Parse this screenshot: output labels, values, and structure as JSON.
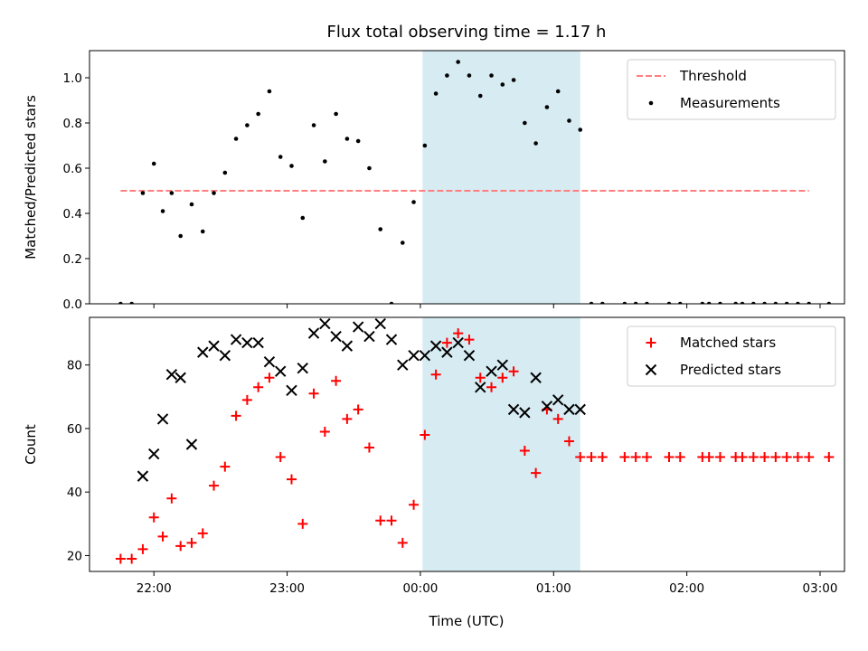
{
  "chart_data": {
    "type": "scatter",
    "title": "Flux total observing time = 1.17 h",
    "xlabel": "Time (UTC)",
    "x_ticks": [
      "22:00",
      "23:00",
      "00:00",
      "01:00",
      "02:00",
      "03:00"
    ],
    "colors": {
      "threshold": "#ff7f7f",
      "measurements": "#000000",
      "matched": "#ff0000",
      "predicted": "#000000",
      "shade": "#add8e6"
    },
    "x_range": [
      "21:31",
      "03:11"
    ],
    "shaded_interval": [
      "00:01",
      "01:12"
    ],
    "panels": [
      {
        "ylabel": "Matched/Predicted stars",
        "ylim": [
          0,
          1.12
        ],
        "y_ticks": [
          "0.0",
          "0.2",
          "0.4",
          "0.6",
          "0.8",
          "1.0"
        ],
        "legend": "top-right",
        "series": [
          {
            "name": "Threshold",
            "kind": "line-dashed",
            "x": [
              "21:45",
              "02:55"
            ],
            "y": [
              0.5,
              0.5
            ]
          },
          {
            "name": "Measurements",
            "kind": "scatter-dot",
            "x": [
              "21:45",
              "21:50",
              "21:55",
              "22:00",
              "22:04",
              "22:08",
              "22:12",
              "22:17",
              "22:22",
              "22:27",
              "22:32",
              "22:37",
              "22:42",
              "22:47",
              "22:52",
              "22:57",
              "23:02",
              "23:07",
              "23:12",
              "23:17",
              "23:22",
              "23:27",
              "23:32",
              "23:37",
              "23:42",
              "23:47",
              "23:52",
              "23:57",
              "00:02",
              "00:07",
              "00:12",
              "00:17",
              "00:22",
              "00:27",
              "00:32",
              "00:37",
              "00:42",
              "00:47",
              "00:52",
              "00:57",
              "01:02",
              "01:07",
              "01:12",
              "01:17",
              "01:22",
              "01:32",
              "01:37",
              "01:42",
              "01:52",
              "01:57",
              "02:07",
              "02:10",
              "02:15",
              "02:22",
              "02:25",
              "02:30",
              "02:35",
              "02:40",
              "02:45",
              "02:50",
              "02:55",
              "03:04"
            ],
            "y": [
              0.0,
              0.0,
              0.49,
              0.62,
              0.41,
              0.49,
              0.3,
              0.44,
              0.32,
              0.49,
              0.58,
              0.73,
              0.79,
              0.84,
              0.94,
              0.65,
              0.61,
              0.38,
              0.79,
              0.63,
              0.84,
              0.73,
              0.72,
              0.6,
              0.33,
              0.0,
              0.27,
              0.45,
              0.7,
              0.93,
              1.01,
              1.07,
              1.01,
              0.92,
              1.01,
              0.97,
              0.99,
              0.8,
              0.71,
              0.87,
              0.94,
              0.81,
              0.77,
              0.0,
              0.0,
              0.0,
              0.0,
              0.0,
              0.0,
              0.0,
              0.0,
              0.0,
              0.0,
              0.0,
              0.0,
              0.0,
              0.0,
              0.0,
              0.0,
              0.0,
              0.0,
              0.0
            ]
          }
        ]
      },
      {
        "ylabel": "Count",
        "ylim": [
          15,
          95
        ],
        "y_ticks": [
          "20",
          "40",
          "60",
          "80"
        ],
        "legend": "top-right",
        "series": [
          {
            "name": "Matched stars",
            "kind": "scatter-plus",
            "x": [
              "21:45",
              "21:50",
              "21:55",
              "22:00",
              "22:04",
              "22:08",
              "22:12",
              "22:17",
              "22:22",
              "22:27",
              "22:32",
              "22:37",
              "22:42",
              "22:47",
              "22:52",
              "22:57",
              "23:02",
              "23:07",
              "23:12",
              "23:17",
              "23:22",
              "23:27",
              "23:32",
              "23:37",
              "23:42",
              "23:47",
              "23:52",
              "23:57",
              "00:02",
              "00:07",
              "00:12",
              "00:17",
              "00:22",
              "00:27",
              "00:32",
              "00:37",
              "00:42",
              "00:47",
              "00:52",
              "00:57",
              "01:02",
              "01:07",
              "01:12",
              "01:17",
              "01:22",
              "01:32",
              "01:37",
              "01:42",
              "01:52",
              "01:57",
              "02:07",
              "02:10",
              "02:15",
              "02:22",
              "02:25",
              "02:30",
              "02:35",
              "02:40",
              "02:45",
              "02:50",
              "02:55",
              "03:04"
            ],
            "y": [
              19,
              19,
              22,
              32,
              26,
              38,
              23,
              24,
              27,
              42,
              48,
              64,
              69,
              73,
              76,
              51,
              44,
              30,
              71,
              59,
              75,
              63,
              66,
              54,
              31,
              31,
              24,
              36,
              58,
              77,
              87,
              90,
              88,
              76,
              73,
              76,
              78,
              53,
              46,
              66,
              63,
              56,
              51,
              51,
              51,
              51,
              51,
              51,
              51,
              51,
              51,
              51,
              51,
              51,
              51,
              51,
              51,
              51,
              51,
              51,
              51,
              51
            ]
          },
          {
            "name": "Predicted stars",
            "kind": "scatter-x",
            "x": [
              "21:55",
              "22:00",
              "22:04",
              "22:08",
              "22:12",
              "22:17",
              "22:22",
              "22:27",
              "22:32",
              "22:37",
              "22:42",
              "22:47",
              "22:52",
              "22:57",
              "23:02",
              "23:07",
              "23:12",
              "23:17",
              "23:22",
              "23:27",
              "23:32",
              "23:37",
              "23:42",
              "23:47",
              "23:52",
              "23:57",
              "00:02",
              "00:07",
              "00:12",
              "00:17",
              "00:22",
              "00:27",
              "00:32",
              "00:37",
              "00:42",
              "00:47",
              "00:52",
              "00:57",
              "01:02",
              "01:07",
              "01:12"
            ],
            "y": [
              45,
              52,
              63,
              77,
              76,
              55,
              84,
              86,
              83,
              88,
              87,
              87,
              81,
              78,
              72,
              79,
              90,
              93,
              89,
              86,
              92,
              89,
              93,
              88,
              80,
              83,
              83,
              86,
              84,
              87,
              83,
              73,
              78,
              80,
              66,
              65,
              76,
              67,
              69,
              66,
              66
            ]
          }
        ]
      }
    ]
  }
}
